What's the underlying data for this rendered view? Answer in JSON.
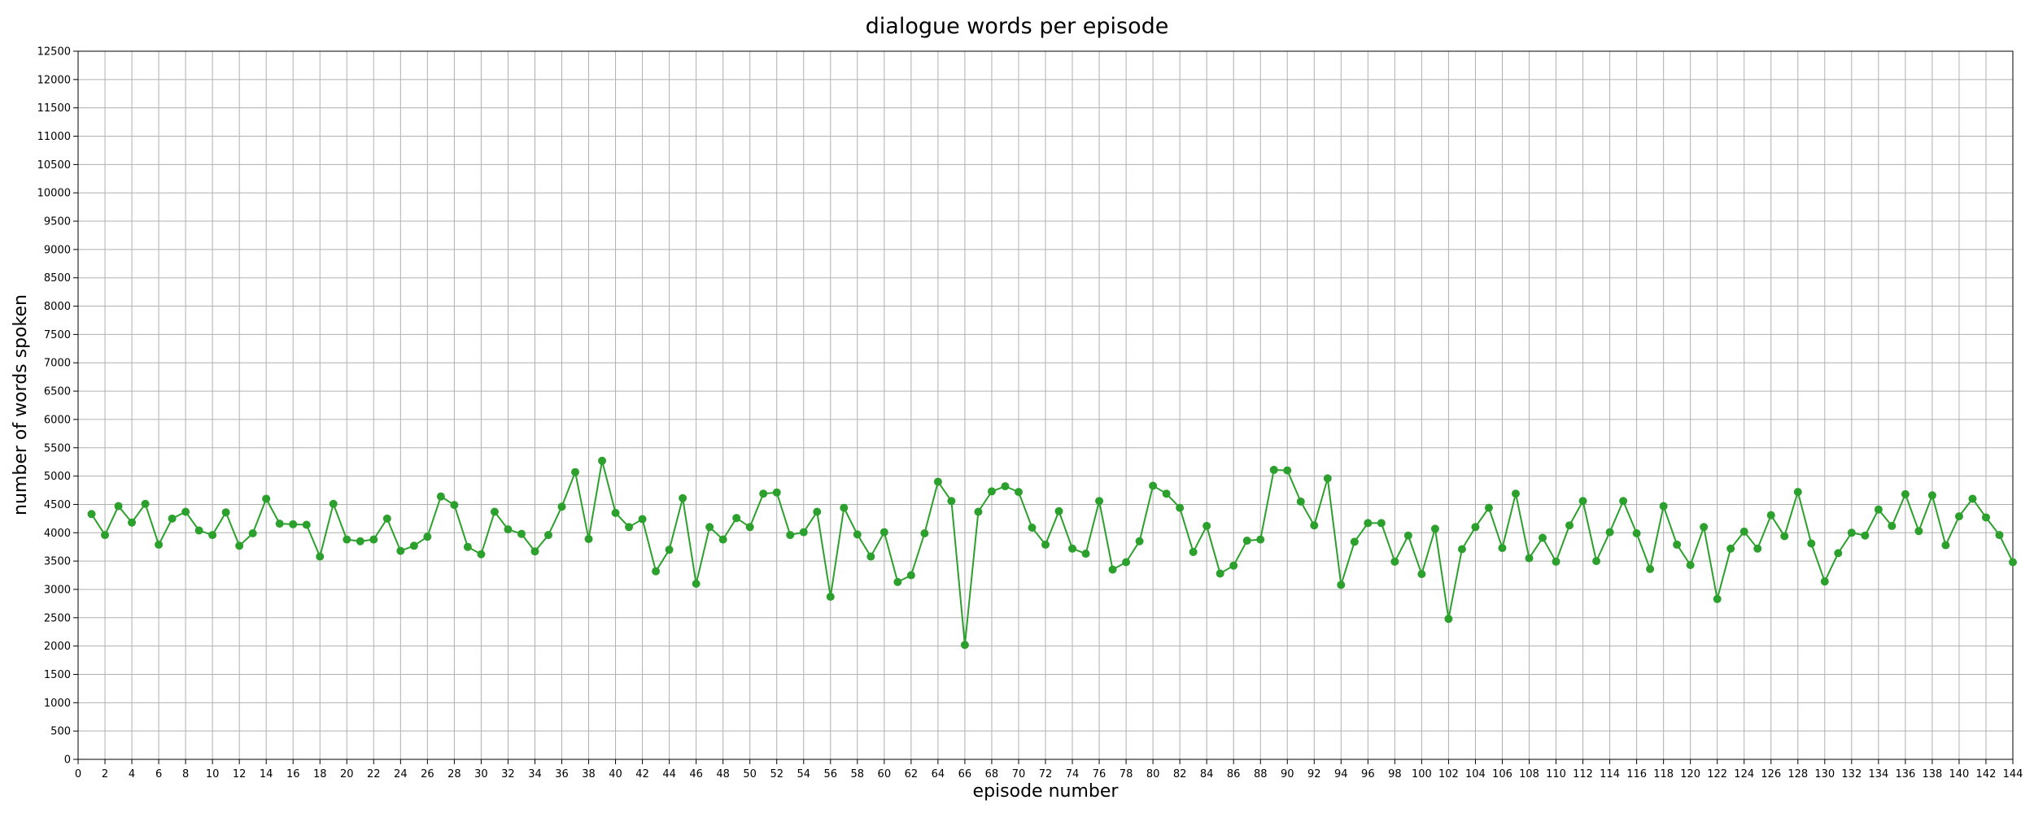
{
  "chart_data": {
    "type": "line",
    "title": "dialogue words per episode",
    "xlabel": "episode number",
    "ylabel": "number of words spoken",
    "xlim": [
      0,
      144
    ],
    "ylim": [
      0,
      12500
    ],
    "x_tick_step": 2,
    "y_tick_step": 500,
    "grid": true,
    "legend": "none",
    "line_color": "#2ca02c",
    "marker": "circle",
    "series": [
      {
        "x": [
          1,
          2,
          3,
          4,
          5,
          6,
          7,
          8,
          9,
          10,
          11,
          12,
          13,
          14,
          15,
          16,
          17,
          18,
          19,
          20,
          21,
          22,
          23,
          24,
          25,
          26,
          27,
          28,
          29,
          30,
          31,
          32,
          33,
          34,
          35,
          36,
          37,
          38,
          39,
          40,
          41,
          42,
          43,
          44,
          45,
          46,
          47,
          48,
          49,
          50,
          51,
          52,
          53,
          54,
          55,
          56,
          57,
          58,
          59,
          60,
          61,
          62,
          63,
          64,
          65,
          66,
          67,
          68,
          69,
          70,
          71,
          72,
          73,
          74,
          75,
          76,
          77,
          78,
          79,
          80,
          81,
          82,
          83,
          84,
          85,
          86,
          87,
          88,
          89,
          90,
          91,
          92,
          93,
          94,
          95,
          96,
          97,
          98,
          99,
          100,
          101,
          102,
          103,
          104,
          105,
          106,
          107,
          108,
          109,
          110,
          111,
          112,
          113,
          114,
          115,
          116,
          117,
          118,
          119,
          120,
          121,
          122,
          123,
          124,
          125,
          126,
          127,
          128,
          129,
          130,
          131,
          132,
          133,
          134,
          135,
          136,
          137,
          138,
          139,
          140,
          141,
          142,
          143,
          144
        ],
        "values": [
          4330,
          3960,
          4470,
          4180,
          4510,
          3790,
          4250,
          4370,
          4040,
          3960,
          4360,
          3770,
          3990,
          4600,
          4160,
          4150,
          4140,
          3580,
          4510,
          3880,
          3850,
          3880,
          4250,
          3680,
          3770,
          3930,
          4640,
          4490,
          3750,
          3620,
          4370,
          4060,
          3980,
          3670,
          3960,
          4460,
          5070,
          3890,
          5270,
          4350,
          4100,
          4240,
          3320,
          3700,
          4610,
          3100,
          4100,
          3880,
          4260,
          4100,
          4690,
          4710,
          3960,
          4010,
          4370,
          2870,
          4440,
          3970,
          3580,
          4010,
          3130,
          3250,
          3990,
          4900,
          4560,
          2020,
          4370,
          4730,
          4820,
          4720,
          4090,
          3790,
          4380,
          3720,
          3630,
          4560,
          3350,
          3480,
          3850,
          4830,
          4690,
          4440,
          3660,
          4120,
          3280,
          3420,
          3860,
          3880,
          5110,
          5100,
          4550,
          4130,
          4960,
          3080,
          3840,
          4170,
          4170,
          3490,
          3950,
          3270,
          4070,
          2480,
          3710,
          4100,
          4440,
          3730,
          4690,
          3550,
          3910,
          3490,
          4130,
          4560,
          3500,
          4010,
          4560,
          3990,
          3360,
          4470,
          3790,
          3430,
          4100,
          2830,
          3720,
          4020,
          3720,
          4310,
          3940,
          4720,
          3810,
          3140,
          3640,
          4000,
          3950,
          4410,
          4120,
          4680,
          4030,
          4660,
          3780,
          4290,
          4600,
          4270,
          3960,
          3480
        ]
      }
    ]
  }
}
